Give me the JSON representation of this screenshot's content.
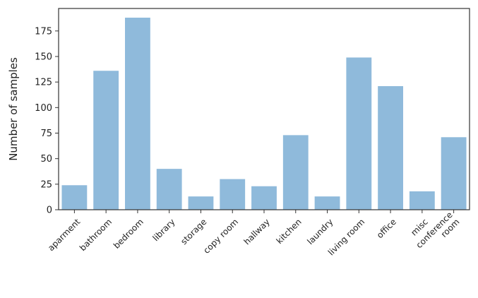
{
  "chart_data": {
    "type": "bar",
    "title": "",
    "xlabel": "",
    "ylabel": "Number of samples",
    "ylim": [
      0,
      197
    ],
    "yticks": [
      0,
      25,
      50,
      75,
      100,
      125,
      150,
      175
    ],
    "grid": false,
    "bar_color": "#8fbadb",
    "categories": [
      "aparment",
      "bathroom",
      "bedroom",
      "library",
      "storage",
      "copy room",
      "hallway",
      "kitchen",
      "laundry",
      "living room",
      "office",
      "misc",
      "conference\nroom"
    ],
    "values": [
      24,
      136,
      188,
      40,
      13,
      30,
      23,
      73,
      13,
      149,
      121,
      18,
      71
    ]
  }
}
